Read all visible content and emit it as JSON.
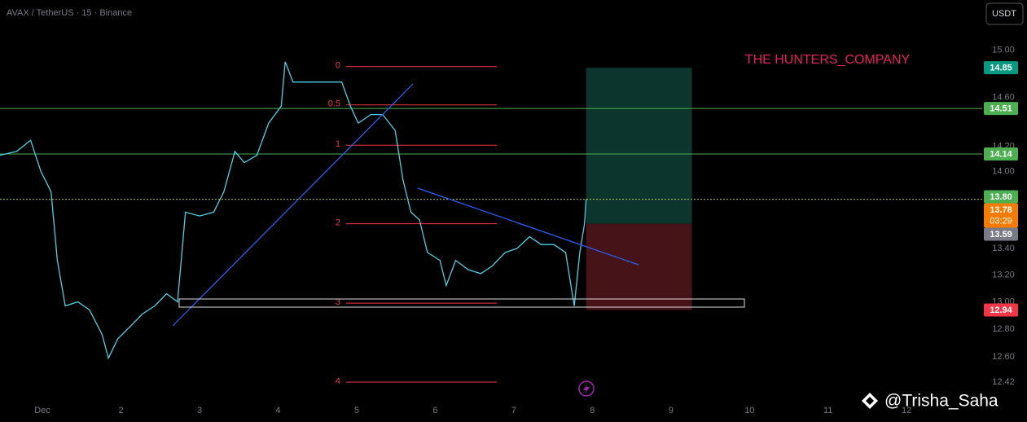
{
  "chart_data": {
    "type": "line",
    "title": "AVAX / TetherUS · 15 · Binance",
    "currency_button": "USDT",
    "annotation": "THE HUNTERS_COMPANY",
    "watermark": "@Trisha_Saha",
    "log_scale": true,
    "x": [
      0.46,
      0.67,
      0.85,
      0.98,
      1.11,
      1.19,
      1.29,
      1.45,
      1.6,
      1.76,
      1.84,
      1.96,
      2.12,
      2.27,
      2.43,
      2.58,
      2.72,
      2.82,
      3.0,
      3.18,
      3.31,
      3.45,
      3.57,
      3.73,
      3.88,
      4.04,
      4.09,
      4.19,
      4.4,
      4.61,
      4.81,
      4.92,
      5.02,
      5.18,
      5.33,
      5.49,
      5.59,
      5.69,
      5.8,
      5.9,
      6.06,
      6.14,
      6.26,
      6.42,
      6.58,
      6.73,
      6.89,
      7.04,
      7.2,
      7.35,
      7.51,
      7.66,
      7.77,
      7.84,
      7.9,
      7.92
    ],
    "series": [
      {
        "color": "#4dd0e1",
        "values": [
          14.13,
          14.16,
          14.25,
          14.0,
          13.84,
          13.31,
          12.97,
          13.0,
          12.94,
          12.76,
          12.59,
          12.73,
          12.82,
          12.91,
          12.97,
          13.06,
          13.0,
          13.68,
          13.65,
          13.68,
          13.84,
          14.16,
          14.07,
          14.13,
          14.39,
          14.53,
          14.9,
          14.73,
          14.73,
          14.73,
          14.73,
          14.53,
          14.39,
          14.46,
          14.46,
          14.33,
          13.93,
          13.68,
          13.62,
          13.37,
          13.31,
          13.12,
          13.31,
          13.24,
          13.21,
          13.27,
          13.37,
          13.4,
          13.49,
          13.43,
          13.43,
          13.37,
          12.97,
          13.37,
          13.59,
          13.78
        ]
      }
    ],
    "xlim": [
      0.46,
      12.9
    ],
    "ylim": [
      12.3,
      15.22
    ],
    "xticks": [
      {
        "value": 1,
        "label": "Dec"
      },
      2,
      3,
      4,
      5,
      6,
      7,
      8,
      9,
      10,
      11,
      12
    ],
    "yticks": [
      {
        "value": 15,
        "label": "15.00"
      },
      {
        "value": 14.6,
        "label": "14.60"
      },
      {
        "value": 14.2,
        "label": "14.20"
      },
      {
        "value": 14,
        "label": "14.00"
      },
      {
        "value": 13.4,
        "label": "13.40"
      },
      {
        "value": 13.2,
        "label": "13.20"
      },
      {
        "value": 13,
        "label": "13.00"
      },
      {
        "value": 12.8,
        "label": "12.80"
      },
      {
        "value": 12.6,
        "label": "12.60"
      },
      12.42
    ],
    "levels": [
      {
        "value": 14.51,
        "color": "#4caf50"
      },
      {
        "value": 14.14,
        "color": "#4caf50"
      },
      {
        "value": 13.78,
        "color": "#c0ca33"
      }
    ],
    "fib_color": "#f23645",
    "fib_levels": [
      {
        "label": "0",
        "value": 14.86
      },
      {
        "label": "0.5",
        "value": 14.54
      },
      {
        "label": "1",
        "value": 14.21
      },
      {
        "label": "2",
        "value": 13.59
      },
      {
        "label": "3",
        "value": 12.99
      },
      {
        "label": "4",
        "value": 12.42
      }
    ],
    "position": {
      "target": 14.85,
      "entry": 13.59,
      "stop": 12.94
    },
    "price_tags": [
      {
        "value": 14.85,
        "label": "14.85",
        "color": "#089981"
      },
      {
        "value": 14.51,
        "label": "14.51",
        "color": "#4caf50"
      },
      {
        "value": 14.14,
        "label": "14.14",
        "color": "#4caf50"
      },
      {
        "value": 13.8,
        "label": "13.80",
        "color": "#4caf50"
      },
      {
        "value": 13.78,
        "label": "13.78",
        "color": "#f57c00",
        "countdown": "03:29"
      },
      {
        "value": 13.59,
        "label": "13.59",
        "color": "#787b86"
      },
      {
        "value": 12.94,
        "label": "12.94",
        "color": "#f23645"
      }
    ]
  }
}
